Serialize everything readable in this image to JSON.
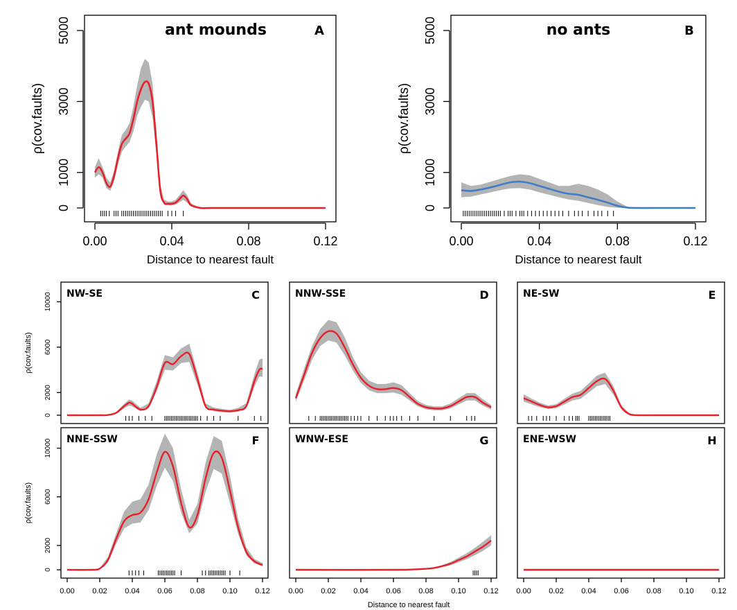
{
  "figure": {
    "shared_xlabel": "Distance to nearest fault",
    "band_color": "#b4b4b4",
    "rug_color": "#000000"
  },
  "chart_data": [
    {
      "id": "A",
      "type": "line",
      "letter": "A",
      "title": "ant mounds",
      "xlabel": "Distance to nearest fault",
      "ylabel": "ρ(cov.faults)",
      "xlim": [
        0,
        0.12
      ],
      "ylim": [
        0,
        5000
      ],
      "xticks": [
        "0.00",
        "0.04",
        "0.08",
        "0.12"
      ],
      "xtick_values": [
        0,
        0.04,
        0.08,
        0.12
      ],
      "yticks": [
        "0",
        "1000",
        "3000",
        "5000"
      ],
      "ytick_values": [
        0,
        1000,
        3000,
        5000
      ],
      "line_color": "#e8202a",
      "x": [
        0,
        0.002,
        0.004,
        0.006,
        0.008,
        0.01,
        0.012,
        0.014,
        0.016,
        0.018,
        0.02,
        0.022,
        0.024,
        0.026,
        0.028,
        0.03,
        0.032,
        0.034,
        0.036,
        0.038,
        0.04,
        0.042,
        0.044,
        0.046,
        0.048,
        0.05,
        0.055,
        0.06,
        0.07,
        0.08,
        0.1,
        0.12
      ],
      "y": [
        1000,
        1150,
        1000,
        700,
        600,
        900,
        1400,
        1800,
        1950,
        2100,
        2500,
        3000,
        3350,
        3550,
        3500,
        3000,
        1800,
        500,
        150,
        120,
        120,
        150,
        250,
        350,
        250,
        80,
        0,
        0,
        0,
        0,
        0,
        0
      ],
      "lower": [
        850,
        950,
        850,
        560,
        480,
        760,
        1220,
        1580,
        1730,
        1850,
        2150,
        2600,
        2850,
        3050,
        3000,
        2550,
        1500,
        380,
        90,
        70,
        70,
        90,
        160,
        230,
        150,
        40,
        0,
        0,
        0,
        0,
        0,
        0
      ],
      "upper": [
        1150,
        1400,
        1150,
        850,
        720,
        1060,
        1600,
        2050,
        2200,
        2380,
        2850,
        3450,
        3950,
        4200,
        4100,
        3500,
        2150,
        660,
        230,
        180,
        180,
        230,
        360,
        500,
        360,
        130,
        0,
        0,
        0,
        0,
        0,
        0
      ],
      "rug": [
        0.003,
        0.004,
        0.005,
        0.006,
        0.0075,
        0.01,
        0.011,
        0.012,
        0.014,
        0.015,
        0.016,
        0.017,
        0.018,
        0.019,
        0.02,
        0.021,
        0.022,
        0.023,
        0.024,
        0.025,
        0.026,
        0.027,
        0.028,
        0.029,
        0.03,
        0.031,
        0.032,
        0.033,
        0.034,
        0.035,
        0.038,
        0.04,
        0.042,
        0.046
      ]
    },
    {
      "id": "B",
      "type": "line",
      "letter": "B",
      "title": "no ants",
      "xlabel": "Distance to nearest fault",
      "ylabel": "ρ(cov.faults)",
      "xlim": [
        0,
        0.12
      ],
      "ylim": [
        0,
        5000
      ],
      "xticks": [
        "0.00",
        "0.04",
        "0.08",
        "0.12"
      ],
      "xtick_values": [
        0,
        0.04,
        0.08,
        0.12
      ],
      "yticks": [
        "0",
        "1000",
        "3000",
        "5000"
      ],
      "ytick_values": [
        0,
        1000,
        3000,
        5000
      ],
      "line_color": "#3f7dc6",
      "x": [
        0,
        0.005,
        0.01,
        0.015,
        0.02,
        0.025,
        0.03,
        0.035,
        0.04,
        0.045,
        0.05,
        0.055,
        0.06,
        0.065,
        0.07,
        0.075,
        0.08,
        0.085,
        0.09,
        0.1,
        0.12
      ],
      "y": [
        500,
        480,
        520,
        580,
        650,
        720,
        740,
        700,
        620,
        540,
        460,
        400,
        370,
        300,
        230,
        150,
        60,
        10,
        0,
        0,
        0
      ],
      "lower": [
        300,
        320,
        380,
        440,
        500,
        550,
        560,
        520,
        440,
        370,
        300,
        240,
        200,
        140,
        80,
        30,
        5,
        0,
        0,
        0,
        0
      ],
      "upper": [
        720,
        620,
        660,
        740,
        820,
        900,
        950,
        920,
        820,
        720,
        620,
        620,
        680,
        620,
        520,
        380,
        180,
        40,
        5,
        0,
        0
      ],
      "rug": [
        0.001,
        0.002,
        0.003,
        0.004,
        0.005,
        0.006,
        0.007,
        0.008,
        0.009,
        0.01,
        0.011,
        0.012,
        0.013,
        0.014,
        0.015,
        0.016,
        0.017,
        0.018,
        0.019,
        0.02,
        0.022,
        0.024,
        0.025,
        0.026,
        0.028,
        0.03,
        0.031,
        0.032,
        0.034,
        0.036,
        0.038,
        0.04,
        0.042,
        0.044,
        0.046,
        0.048,
        0.05,
        0.052,
        0.055,
        0.058,
        0.06,
        0.062,
        0.065,
        0.068,
        0.07,
        0.072,
        0.075,
        0.078
      ]
    },
    {
      "id": "C",
      "type": "line",
      "letter": "NW-SE",
      "corner": "C",
      "xlim": [
        0,
        0.12
      ],
      "ylim": [
        0,
        11000
      ],
      "xticks": [],
      "xtick_values": [],
      "yticks": [
        "0",
        "2000",
        "6000",
        "10000"
      ],
      "ytick_values": [
        0,
        2000,
        6000,
        10000
      ],
      "ylabel": "ρ(cov.faults)",
      "line_color": "#e8202a",
      "x": [
        0,
        0.02,
        0.025,
        0.03,
        0.035,
        0.038,
        0.04,
        0.045,
        0.05,
        0.055,
        0.06,
        0.065,
        0.07,
        0.075,
        0.08,
        0.085,
        0.09,
        0.095,
        0.1,
        0.105,
        0.11,
        0.115,
        0.118,
        0.12
      ],
      "y": [
        0,
        0,
        20,
        200,
        800,
        1100,
        1000,
        500,
        800,
        2500,
        4600,
        4500,
        5200,
        5400,
        3200,
        800,
        500,
        400,
        350,
        450,
        800,
        3000,
        4000,
        4100
      ],
      "lower": [
        0,
        0,
        10,
        130,
        600,
        850,
        760,
        350,
        600,
        2100,
        4000,
        3950,
        4600,
        4700,
        2700,
        600,
        350,
        270,
        240,
        300,
        600,
        2500,
        3400,
        3400
      ],
      "upper": [
        0,
        0,
        40,
        280,
        1000,
        1380,
        1280,
        660,
        1050,
        3000,
        5300,
        5100,
        5900,
        6300,
        3800,
        1050,
        680,
        560,
        480,
        640,
        1050,
        3600,
        4900,
        5000
      ],
      "rug": [
        0.036,
        0.038,
        0.04,
        0.044,
        0.048,
        0.052,
        0.06,
        0.061,
        0.062,
        0.063,
        0.064,
        0.065,
        0.066,
        0.067,
        0.068,
        0.069,
        0.07,
        0.071,
        0.072,
        0.073,
        0.074,
        0.075,
        0.076,
        0.077,
        0.078,
        0.079,
        0.08,
        0.082,
        0.086,
        0.09,
        0.094,
        0.105,
        0.115,
        0.119
      ]
    },
    {
      "id": "D",
      "type": "line",
      "letter": "NNW-SSE",
      "corner": "D",
      "xlim": [
        0,
        0.12
      ],
      "ylim": [
        0,
        11000
      ],
      "xticks": [],
      "xtick_values": [],
      "yticks": [],
      "ytick_values": [],
      "line_color": "#e8202a",
      "x": [
        0,
        0.005,
        0.01,
        0.015,
        0.02,
        0.025,
        0.03,
        0.035,
        0.04,
        0.045,
        0.05,
        0.055,
        0.06,
        0.065,
        0.07,
        0.075,
        0.08,
        0.085,
        0.09,
        0.095,
        0.1,
        0.105,
        0.11,
        0.115,
        0.12
      ],
      "y": [
        1500,
        3500,
        5500,
        6800,
        7400,
        7200,
        6000,
        4500,
        3300,
        2600,
        2300,
        2300,
        2400,
        2200,
        1600,
        1000,
        700,
        600,
        600,
        800,
        1200,
        1600,
        1600,
        1100,
        700
      ],
      "lower": [
        1200,
        3000,
        4900,
        6100,
        6600,
        6400,
        5300,
        3950,
        2850,
        2200,
        1950,
        1950,
        2000,
        1800,
        1300,
        780,
        520,
        430,
        430,
        600,
        950,
        1300,
        1300,
        850,
        500
      ],
      "upper": [
        1850,
        4050,
        6100,
        7600,
        8400,
        8200,
        6900,
        5150,
        3800,
        3050,
        2750,
        2750,
        2900,
        2650,
        1950,
        1250,
        900,
        780,
        780,
        1030,
        1500,
        1950,
        1950,
        1400,
        900
      ],
      "rug": [
        0.008,
        0.012,
        0.015,
        0.016,
        0.017,
        0.018,
        0.019,
        0.02,
        0.021,
        0.022,
        0.023,
        0.024,
        0.025,
        0.026,
        0.027,
        0.028,
        0.029,
        0.03,
        0.031,
        0.032,
        0.034,
        0.036,
        0.038,
        0.04,
        0.045,
        0.05,
        0.055,
        0.058,
        0.06,
        0.062,
        0.065,
        0.07,
        0.075,
        0.085,
        0.095,
        0.105,
        0.108,
        0.11
      ]
    },
    {
      "id": "E",
      "type": "line",
      "letter": "NE-SW",
      "corner": "E",
      "xlim": [
        0,
        0.12
      ],
      "ylim": [
        0,
        11000
      ],
      "xticks": [],
      "xtick_values": [],
      "yticks": [],
      "ytick_values": [],
      "line_color": "#e8202a",
      "x": [
        0,
        0.005,
        0.01,
        0.015,
        0.02,
        0.025,
        0.03,
        0.035,
        0.04,
        0.045,
        0.05,
        0.055,
        0.06,
        0.065,
        0.07,
        0.08,
        0.1,
        0.12
      ],
      "y": [
        1500,
        1200,
        900,
        700,
        800,
        1200,
        1600,
        1800,
        2400,
        3000,
        3200,
        2200,
        700,
        100,
        0,
        0,
        0,
        0
      ],
      "lower": [
        1200,
        950,
        700,
        540,
        620,
        950,
        1300,
        1450,
        2000,
        2550,
        2750,
        1850,
        550,
        60,
        0,
        0,
        0,
        0
      ],
      "upper": [
        1850,
        1450,
        1100,
        860,
        980,
        1450,
        1900,
        2150,
        2800,
        3500,
        3750,
        2600,
        880,
        150,
        0,
        0,
        0,
        0
      ],
      "rug": [
        0.003,
        0.005,
        0.008,
        0.012,
        0.014,
        0.016,
        0.02,
        0.025,
        0.028,
        0.03,
        0.032,
        0.033,
        0.034,
        0.04,
        0.041,
        0.042,
        0.043,
        0.044,
        0.045,
        0.046,
        0.047,
        0.048,
        0.049,
        0.05,
        0.051,
        0.052,
        0.053
      ]
    },
    {
      "id": "F",
      "type": "line",
      "letter": "NNE-SSW",
      "corner": "F",
      "xlim": [
        0,
        0.12
      ],
      "ylim": [
        0,
        11000
      ],
      "xticks": [
        "0.00",
        "0.02",
        "0.04",
        "0.06",
        "0.08",
        "0.10",
        "0.12"
      ],
      "xtick_values": [
        0,
        0.02,
        0.04,
        0.06,
        0.08,
        0.1,
        0.12
      ],
      "yticks": [
        "0",
        "2000",
        "6000",
        "10000"
      ],
      "ytick_values": [
        0,
        2000,
        6000,
        10000
      ],
      "ylabel": "ρ(cov.faults)",
      "line_color": "#e8202a",
      "x": [
        0,
        0.015,
        0.02,
        0.025,
        0.03,
        0.035,
        0.04,
        0.045,
        0.05,
        0.055,
        0.06,
        0.065,
        0.07,
        0.075,
        0.08,
        0.085,
        0.09,
        0.095,
        0.1,
        0.105,
        0.11,
        0.115,
        0.12
      ],
      "y": [
        0,
        0,
        100,
        800,
        2500,
        4000,
        4500,
        4700,
        5800,
        8000,
        9700,
        8500,
        5500,
        3500,
        4500,
        7500,
        9600,
        9200,
        6500,
        3500,
        1500,
        700,
        400
      ],
      "lower": [
        0,
        0,
        60,
        600,
        2100,
        3400,
        3800,
        3900,
        4900,
        6900,
        8400,
        7300,
        4700,
        3000,
        3800,
        6400,
        8300,
        7900,
        5500,
        2950,
        1200,
        520,
        280
      ],
      "upper": [
        0,
        0,
        150,
        1050,
        2950,
        4800,
        5600,
        5800,
        7000,
        9500,
        11200,
        10000,
        6600,
        4100,
        5400,
        8800,
        11000,
        10600,
        7700,
        4200,
        1850,
        900,
        550
      ],
      "rug": [
        0.038,
        0.04,
        0.042,
        0.044,
        0.047,
        0.056,
        0.057,
        0.058,
        0.059,
        0.06,
        0.061,
        0.062,
        0.063,
        0.064,
        0.065,
        0.066,
        0.07,
        0.083,
        0.085,
        0.087,
        0.088,
        0.089,
        0.09,
        0.091,
        0.092,
        0.093,
        0.094,
        0.095,
        0.096,
        0.097,
        0.1,
        0.106
      ]
    },
    {
      "id": "G",
      "type": "line",
      "letter": "WNW-ESE",
      "corner": "G",
      "xlim": [
        0,
        0.12
      ],
      "ylim": [
        0,
        11000
      ],
      "xticks": [
        "0.00",
        "0.02",
        "0.04",
        "0.06",
        "0.08",
        "0.10",
        "0.12"
      ],
      "xtick_values": [
        0,
        0.02,
        0.04,
        0.06,
        0.08,
        0.1,
        0.12
      ],
      "yticks": [],
      "ytick_values": [],
      "xlabel": "Distance to nearest fault",
      "line_color": "#e8202a",
      "x": [
        0,
        0.06,
        0.07,
        0.08,
        0.085,
        0.09,
        0.095,
        0.1,
        0.105,
        0.11,
        0.115,
        0.12
      ],
      "y": [
        0,
        0,
        20,
        80,
        150,
        300,
        500,
        800,
        1100,
        1500,
        1900,
        2400
      ],
      "lower": [
        0,
        0,
        10,
        50,
        100,
        220,
        380,
        620,
        870,
        1200,
        1550,
        2000
      ],
      "upper": [
        0,
        0,
        30,
        110,
        200,
        390,
        640,
        1000,
        1350,
        1800,
        2300,
        2850
      ],
      "rug": [
        0.109,
        0.11,
        0.111,
        0.112
      ]
    },
    {
      "id": "H",
      "type": "line",
      "letter": "ENE-WSW",
      "corner": "H",
      "xlim": [
        0,
        0.12
      ],
      "ylim": [
        0,
        11000
      ],
      "xticks": [
        "0.00",
        "0.02",
        "0.04",
        "0.06",
        "0.08",
        "0.10",
        "0.12"
      ],
      "xtick_values": [
        0,
        0.02,
        0.04,
        0.06,
        0.08,
        0.1,
        0.12
      ],
      "yticks": [],
      "ytick_values": [],
      "line_color": "#e8202a",
      "x": [
        0,
        0.12
      ],
      "y": [
        0,
        0
      ],
      "lower": [
        0,
        0
      ],
      "upper": [
        0,
        0
      ],
      "rug": []
    }
  ]
}
